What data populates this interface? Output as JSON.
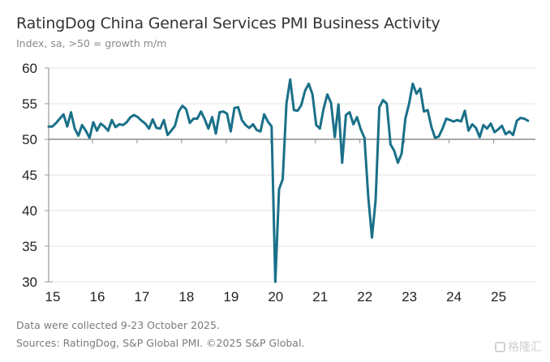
{
  "header": {
    "title": "RatingDog China General Services PMI Business Activity",
    "subtitle": "Index, sa, >50 = growth m/m"
  },
  "footer": {
    "note": "Data were collected 9-23 October 2025.",
    "sources": "Sources: RatingDog, S&P Global PMI. ©2025 S&P Global."
  },
  "watermark": {
    "text": "格隆汇",
    "icon": "gelonghui-logo-icon"
  },
  "colors": {
    "line": "#1a7089",
    "grid": "#e3e3e3",
    "axis": "#9a9a9a",
    "threshold": "#8c8c8c"
  },
  "chart_data": {
    "type": "line",
    "title": "RatingDog China General Services PMI Business Activity",
    "subtitle": "Index, sa, >50 = growth m/m",
    "xlabel": "",
    "ylabel": "",
    "ylim": [
      30,
      60
    ],
    "yticks": [
      60,
      55,
      50,
      45,
      40,
      35,
      30
    ],
    "xticks": [
      "15",
      "16",
      "17",
      "18",
      "19",
      "20",
      "21",
      "22",
      "23",
      "24",
      "25"
    ],
    "x_start": "2015-01",
    "x_frequency": "monthly",
    "grid": true,
    "threshold": 50,
    "legend": "none",
    "series": [
      {
        "name": "Services PMI Business Activity",
        "values": [
          51.8,
          51.8,
          52.3,
          52.9,
          53.5,
          51.8,
          53.8,
          51.5,
          50.5,
          52.0,
          51.2,
          50.2,
          52.4,
          51.2,
          52.2,
          51.8,
          51.2,
          52.7,
          51.7,
          52.1,
          52.0,
          52.4,
          53.1,
          53.4,
          53.1,
          52.6,
          52.2,
          51.5,
          52.8,
          51.6,
          51.5,
          52.7,
          50.6,
          51.2,
          51.9,
          53.9,
          54.7,
          54.2,
          52.3,
          52.9,
          52.9,
          53.9,
          52.8,
          51.5,
          53.1,
          50.8,
          53.8,
          53.9,
          53.6,
          51.1,
          54.4,
          54.5,
          52.7,
          52.0,
          51.6,
          52.1,
          51.3,
          51.1,
          53.5,
          52.5,
          51.8,
          26.5,
          43.0,
          44.4,
          55.0,
          58.4,
          54.1,
          54.0,
          54.8,
          56.8,
          57.8,
          56.3,
          52.0,
          51.5,
          54.3,
          56.3,
          55.1,
          50.3,
          54.9,
          46.7,
          53.4,
          53.8,
          52.1,
          53.1,
          51.4,
          50.2,
          42.0,
          36.2,
          41.4,
          54.5,
          55.5,
          55.0,
          49.3,
          48.4,
          46.7,
          48.0,
          52.9,
          55.0,
          57.8,
          56.4,
          57.1,
          53.9,
          54.1,
          51.8,
          50.2,
          50.4,
          51.5,
          52.9,
          52.7,
          52.5,
          52.7,
          52.5,
          54.0,
          51.2,
          52.1,
          51.6,
          50.3,
          52.0,
          51.5,
          52.2,
          51.0,
          51.4,
          51.9,
          50.7,
          51.1,
          50.6,
          52.6,
          53.0,
          52.9,
          52.6
        ]
      }
    ]
  }
}
